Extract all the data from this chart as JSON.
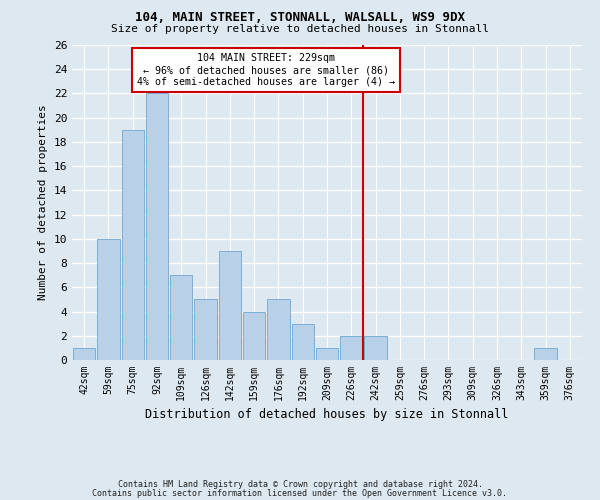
{
  "title1": "104, MAIN STREET, STONNALL, WALSALL, WS9 9DX",
  "title2": "Size of property relative to detached houses in Stonnall",
  "xlabel": "Distribution of detached houses by size in Stonnall",
  "ylabel": "Number of detached properties",
  "bin_labels": [
    "42sqm",
    "59sqm",
    "75sqm",
    "92sqm",
    "109sqm",
    "126sqm",
    "142sqm",
    "159sqm",
    "176sqm",
    "192sqm",
    "209sqm",
    "226sqm",
    "242sqm",
    "259sqm",
    "276sqm",
    "293sqm",
    "309sqm",
    "326sqm",
    "343sqm",
    "359sqm",
    "376sqm"
  ],
  "bar_heights": [
    1,
    10,
    19,
    22,
    7,
    5,
    9,
    4,
    5,
    3,
    1,
    2,
    2,
    0,
    0,
    0,
    0,
    0,
    0,
    1,
    0
  ],
  "bar_color": "#b8d0e8",
  "bar_edge_color": "#7aafd4",
  "background_color": "#dde8f0",
  "grid_color": "#ffffff",
  "annotation_text": "104 MAIN STREET: 229sqm\n← 96% of detached houses are smaller (86)\n4% of semi-detached houses are larger (4) →",
  "annotation_box_color": "#ffffff",
  "annotation_box_edge": "#cc0000",
  "vline_color": "#cc0000",
  "vline_x": 11.5,
  "ylim": [
    0,
    26
  ],
  "yticks": [
    0,
    2,
    4,
    6,
    8,
    10,
    12,
    14,
    16,
    18,
    20,
    22,
    24,
    26
  ],
  "footer1": "Contains HM Land Registry data © Crown copyright and database right 2024.",
  "footer2": "Contains public sector information licensed under the Open Government Licence v3.0."
}
